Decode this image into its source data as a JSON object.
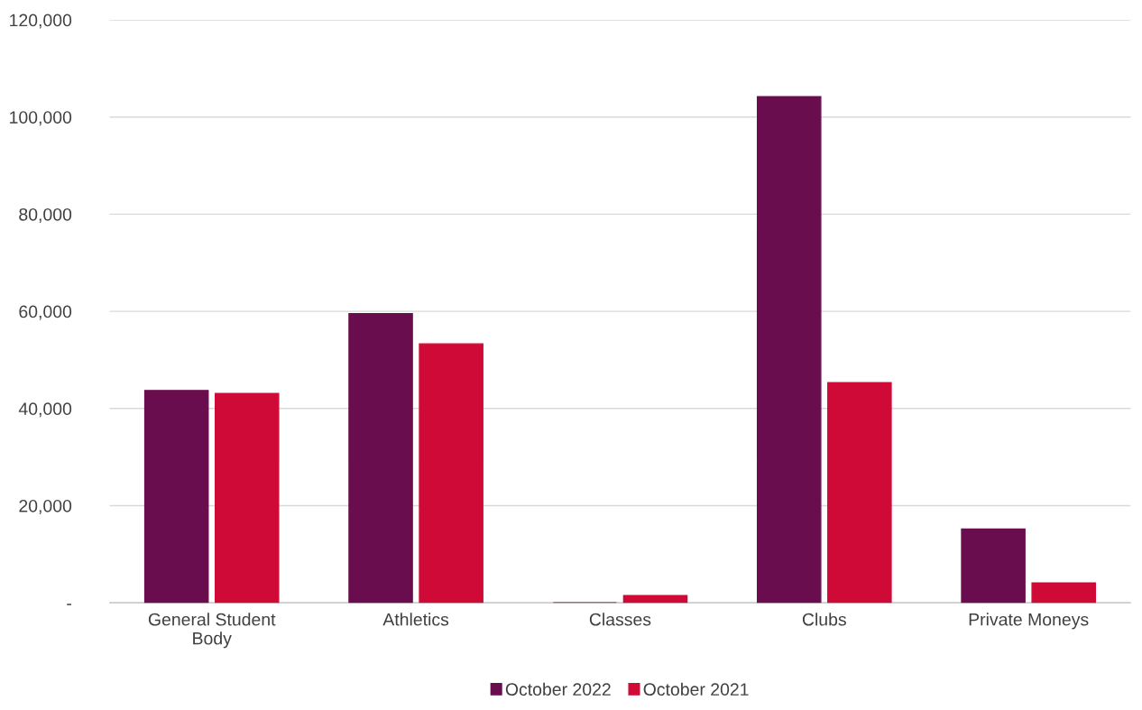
{
  "chart_data": {
    "type": "bar",
    "categories": [
      "General Student\nBody",
      "Athletics",
      "Classes",
      "Clubs",
      "Private Moneys"
    ],
    "series": [
      {
        "name": "October 2022",
        "color": "#6a0d4e",
        "values": [
          43700,
          59500,
          0,
          104200,
          15200
        ]
      },
      {
        "name": "October 2021",
        "color": "#cf0a37",
        "values": [
          43100,
          53300,
          1500,
          45300,
          4100
        ]
      }
    ],
    "ylim": [
      0,
      120000
    ],
    "yticks": [
      {
        "value": 0,
        "label": "-"
      },
      {
        "value": 20000,
        "label": "20,000"
      },
      {
        "value": 40000,
        "label": "40,000"
      },
      {
        "value": 60000,
        "label": "60,000"
      },
      {
        "value": 80000,
        "label": "80,000"
      },
      {
        "value": 100000,
        "label": "100,000"
      },
      {
        "value": 120000,
        "label": "120,000"
      }
    ],
    "grid": "y",
    "legend": "bottom"
  }
}
